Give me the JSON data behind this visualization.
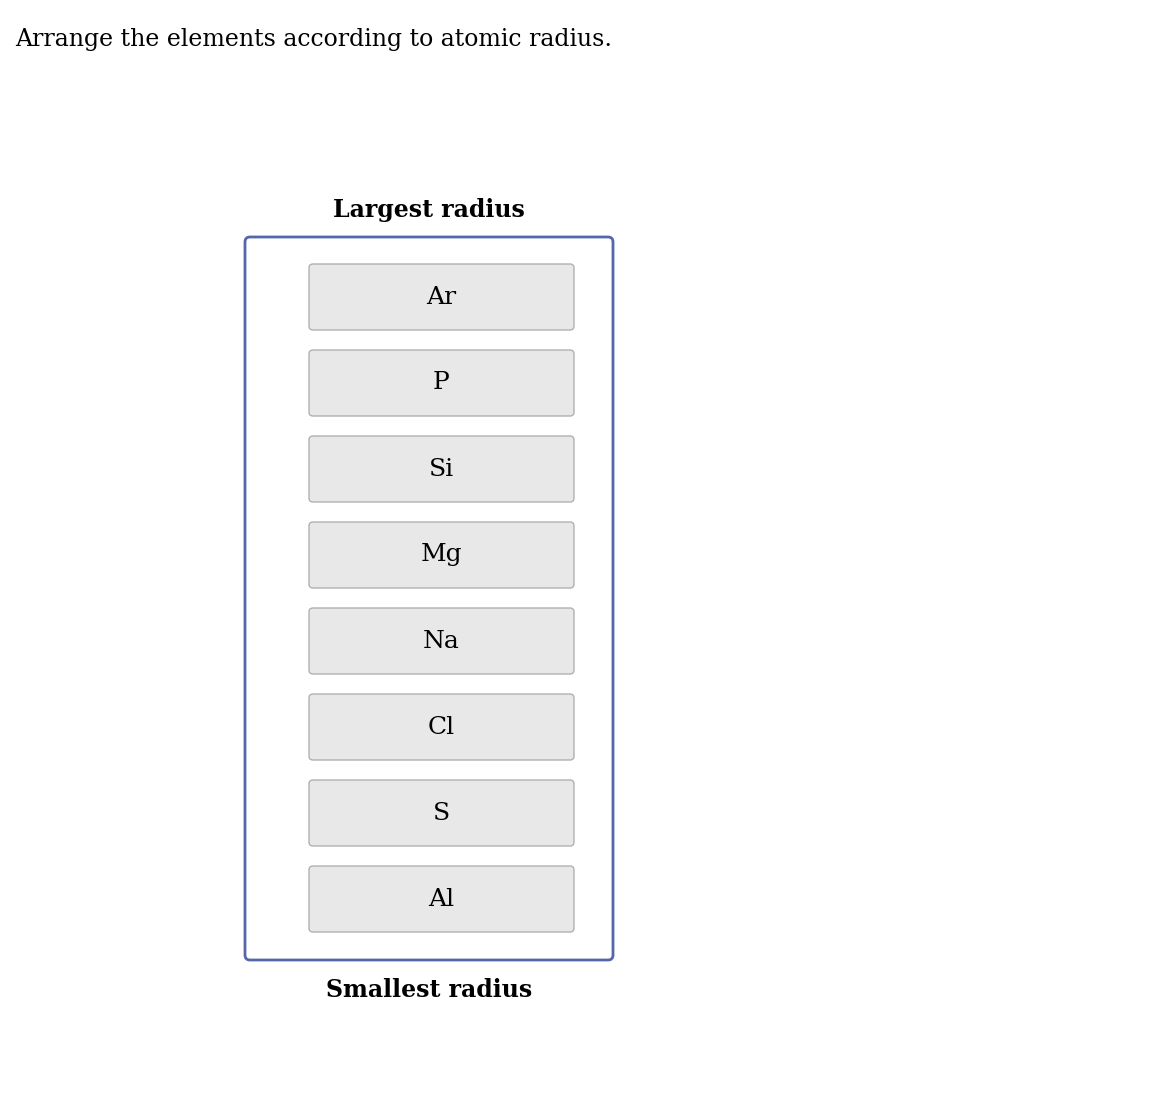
{
  "title": "Arrange the elements according to atomic radius.",
  "largest_label": "Largest radius",
  "smallest_label": "Smallest radius",
  "elements": [
    "Ar",
    "P",
    "Si",
    "Mg",
    "Na",
    "Cl",
    "S",
    "Al"
  ],
  "box_bg_color": "#e8e8e8",
  "box_edge_color": "#b0b0b0",
  "container_edge_color": "#5566aa",
  "container_bg_color": "#ffffff",
  "text_color": "#000000",
  "title_color": "#000000",
  "label_color": "#000000",
  "fig_bg_color": "#ffffff",
  "element_fontsize": 18,
  "title_fontsize": 17,
  "label_fontsize": 17,
  "fig_width": 11.67,
  "fig_height": 11.13,
  "dpi": 100
}
